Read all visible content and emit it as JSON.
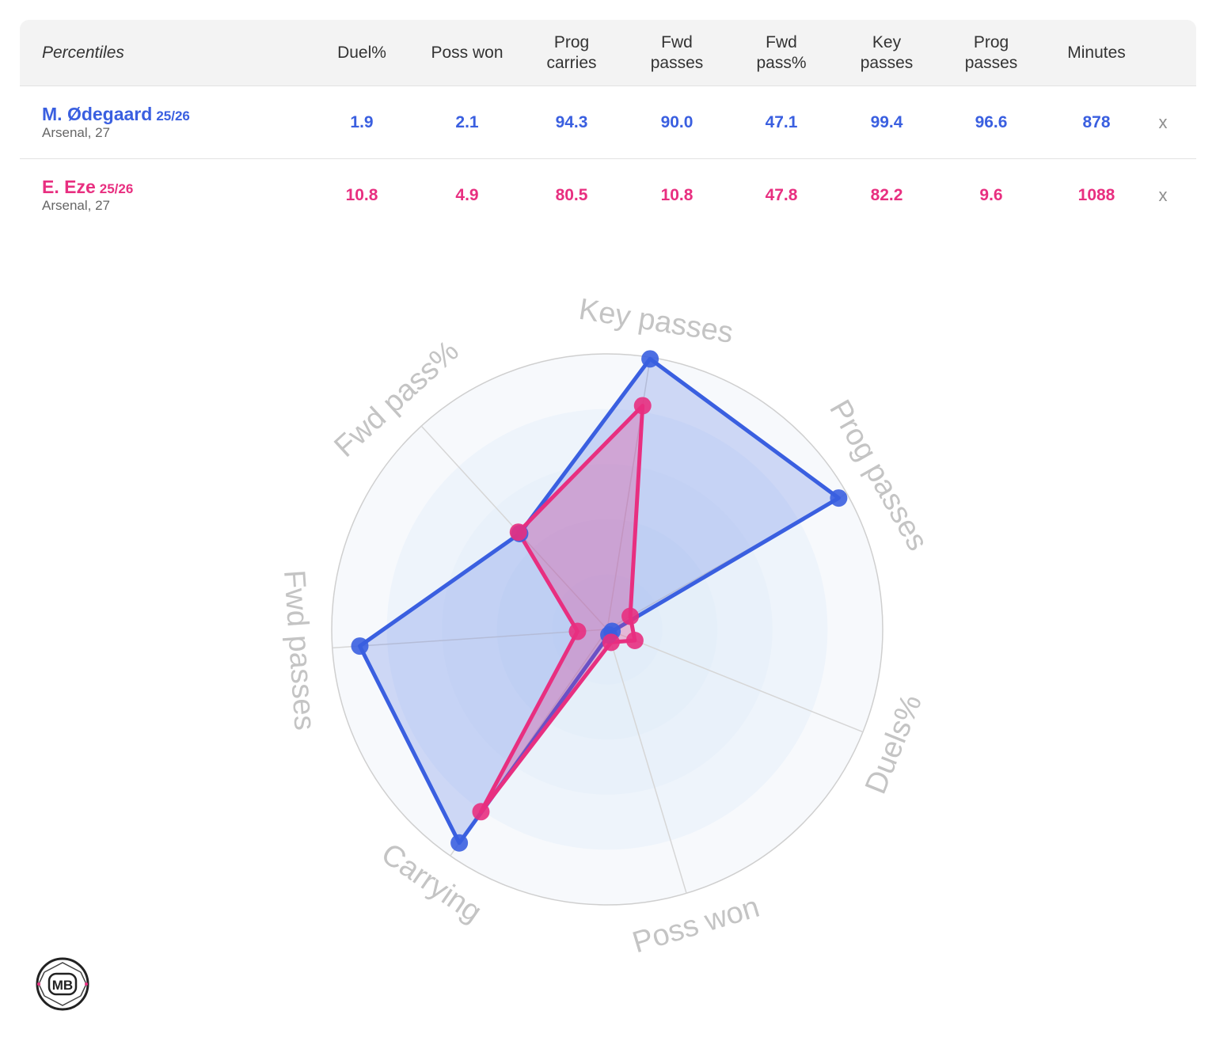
{
  "table": {
    "header": {
      "first": "Percentiles",
      "columns": [
        [
          "Duel%"
        ],
        [
          "Poss won"
        ],
        [
          "Prog",
          "carries"
        ],
        [
          "Fwd",
          "passes"
        ],
        [
          "Fwd",
          "pass%"
        ],
        [
          "Key",
          "passes"
        ],
        [
          "Prog",
          "passes"
        ],
        [
          "Minutes"
        ]
      ]
    },
    "rows": [
      {
        "name": "M. Ødegaard",
        "season": "25/26",
        "club": "Arsenal, 27",
        "color": "#3a5fe0",
        "values": [
          "1.9",
          "2.1",
          "94.3",
          "90.0",
          "47.1",
          "99.4",
          "96.6",
          "878"
        ],
        "remove": "x"
      },
      {
        "name": "E. Eze",
        "season": "25/26",
        "club": "Arsenal, 27",
        "color": "#e82f80",
        "values": [
          "10.8",
          "4.9",
          "80.5",
          "10.8",
          "47.8",
          "82.2",
          "9.6",
          "1088"
        ],
        "remove": "x"
      }
    ]
  },
  "chart_data": {
    "type": "radar",
    "axes": [
      "Key passes",
      "Prog passes",
      "Duels%",
      "Poss won",
      "Carrying",
      "Fwd passes",
      "Fwd pass%"
    ],
    "range": [
      0,
      100
    ],
    "grid": true,
    "series": [
      {
        "name": "M. Ødegaard",
        "color": "#3a5fe0",
        "values": [
          99.4,
          96.6,
          1.9,
          2.1,
          94.3,
          90.0,
          47.1
        ]
      },
      {
        "name": "E. Eze",
        "color": "#e82f80",
        "values": [
          82.2,
          9.6,
          10.8,
          4.9,
          80.5,
          10.8,
          47.8
        ]
      }
    ]
  },
  "logo": {
    "text": "MB"
  }
}
